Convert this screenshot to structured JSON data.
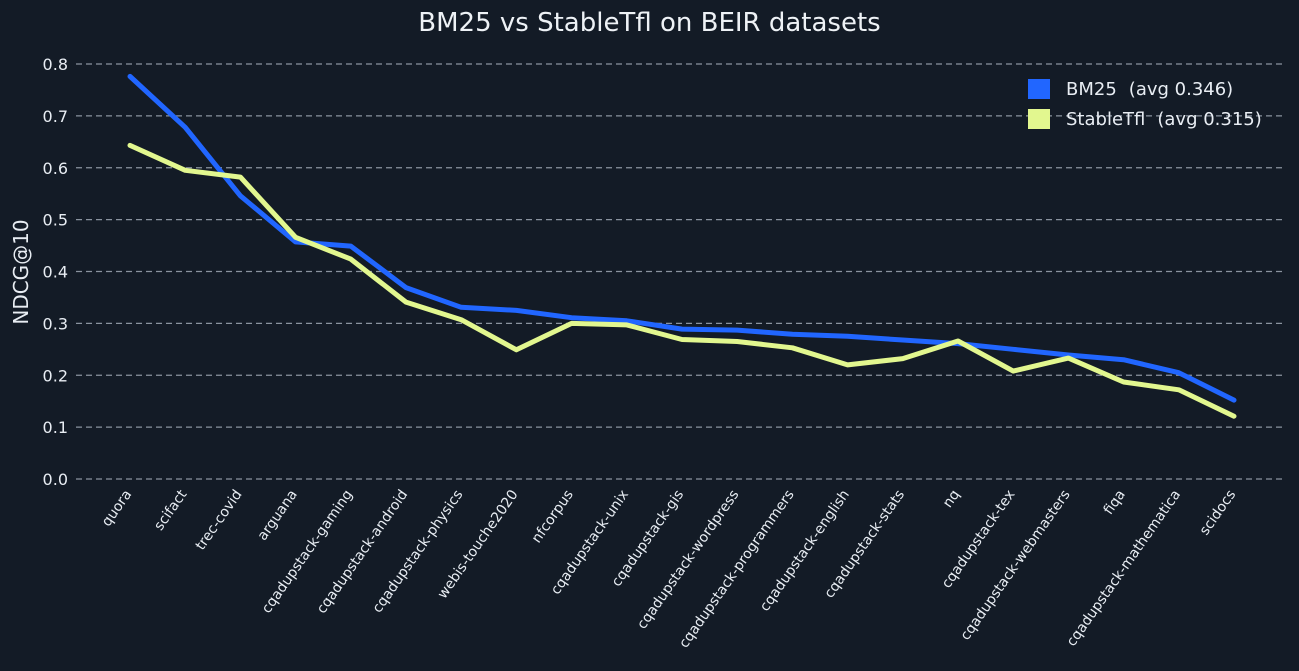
{
  "chart_data": {
    "type": "line",
    "title": "BM25 vs StableTfl on BEIR datasets",
    "ylabel": "NDCG@10",
    "xlabel": "",
    "ylim": [
      0,
      0.8
    ],
    "yticks": [
      "0.0",
      "0.1",
      "0.2",
      "0.3",
      "0.4",
      "0.5",
      "0.6",
      "0.7",
      "0.8"
    ],
    "grid": "horizontal dashed",
    "legend_position": "top-right",
    "categories": [
      "quora",
      "scifact",
      "trec-covid",
      "arguana",
      "cqadupstack-gaming",
      "cqadupstack-android",
      "cqadupstack-physics",
      "webis-touche2020",
      "nfcorpus",
      "cqadupstack-unix",
      "cqadupstack-gis",
      "cqadupstack-wordpress",
      "cqadupstack-programmers",
      "cqadupstack-english",
      "cqadupstack-stats",
      "nq",
      "cqadupstack-tex",
      "cqadupstack-webmasters",
      "fiqa",
      "cqadupstack-mathematica",
      "scidocs"
    ],
    "series": [
      {
        "name": "BM25",
        "legend_avg": "(avg 0.346)",
        "color": "#2166ff",
        "values": [
          0.776,
          0.678,
          0.546,
          0.457,
          0.449,
          0.369,
          0.331,
          0.325,
          0.311,
          0.305,
          0.289,
          0.287,
          0.279,
          0.275,
          0.268,
          0.261,
          0.25,
          0.239,
          0.23,
          0.205,
          0.152
        ]
      },
      {
        "name": "StableTfl",
        "legend_avg": "(avg 0.315)",
        "color": "#e2f78f",
        "values": [
          0.643,
          0.595,
          0.582,
          0.466,
          0.424,
          0.341,
          0.307,
          0.249,
          0.3,
          0.297,
          0.269,
          0.265,
          0.253,
          0.22,
          0.232,
          0.266,
          0.208,
          0.233,
          0.187,
          0.172,
          0.121
        ]
      }
    ]
  }
}
